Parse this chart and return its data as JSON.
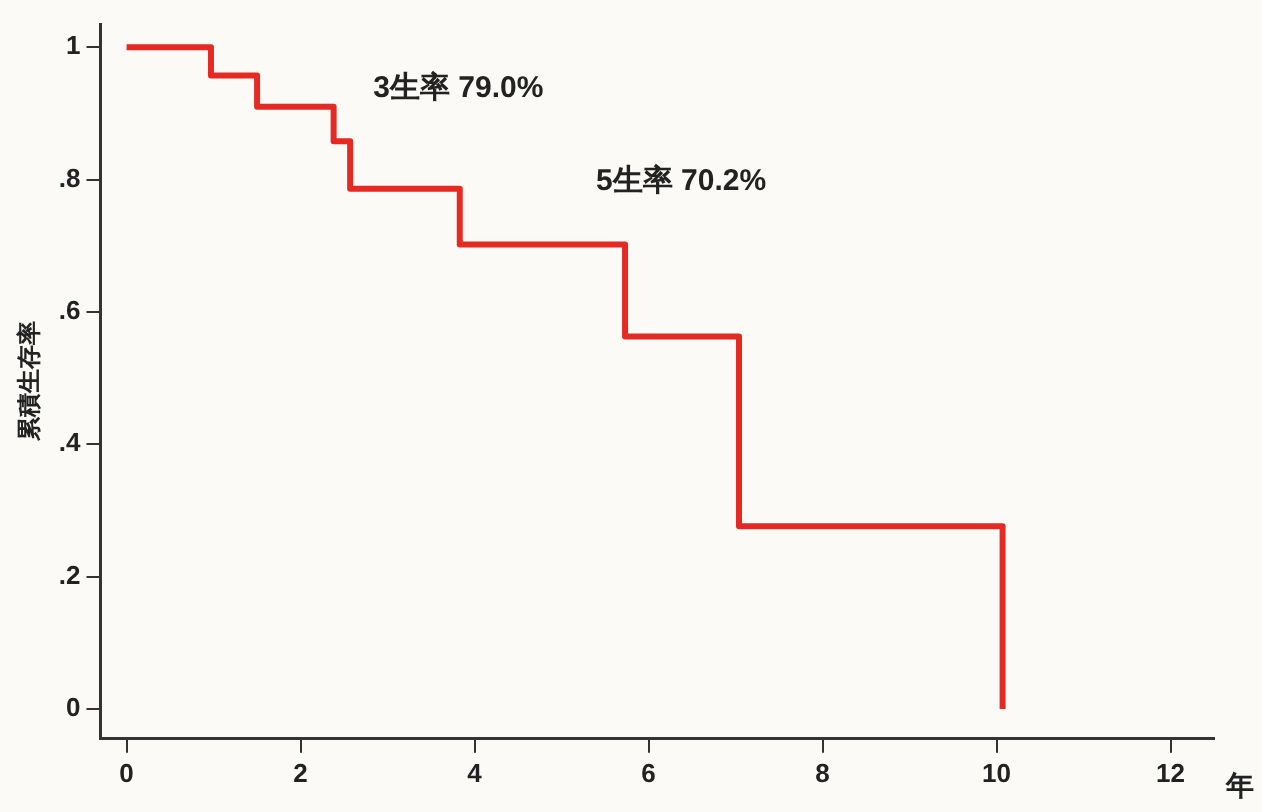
{
  "chart_data": {
    "type": "step",
    "xlabel": "年",
    "ylabel": "累積生存率",
    "x": [
      0,
      0.97,
      1.5,
      2.38,
      2.57,
      3.83,
      5.73,
      7.04,
      10.07
    ],
    "series": [
      {
        "color": "#e42a22",
        "values": [
          1,
          0.957,
          0.91,
          0.858,
          0.786,
          0.702,
          0.563,
          0.276,
          0
        ]
      }
    ],
    "xlim": [
      -0.3,
      12.5
    ],
    "xticks": [
      0,
      2,
      4,
      6,
      8,
      10,
      12
    ],
    "ylim": [
      -0.045,
      1.035
    ],
    "yticks": [
      0,
      {
        "value": 0.2,
        "label": ".2"
      },
      {
        "value": 0.4,
        "label": ".4"
      },
      {
        "value": 0.6,
        "label": ".6"
      },
      {
        "value": 0.8,
        "label": ".8"
      },
      1
    ],
    "annotations": [
      "3生率 79.0%",
      "5生率 70.2%"
    ],
    "grid": false,
    "legend": false,
    "marker": "none",
    "line_style": "solid"
  }
}
